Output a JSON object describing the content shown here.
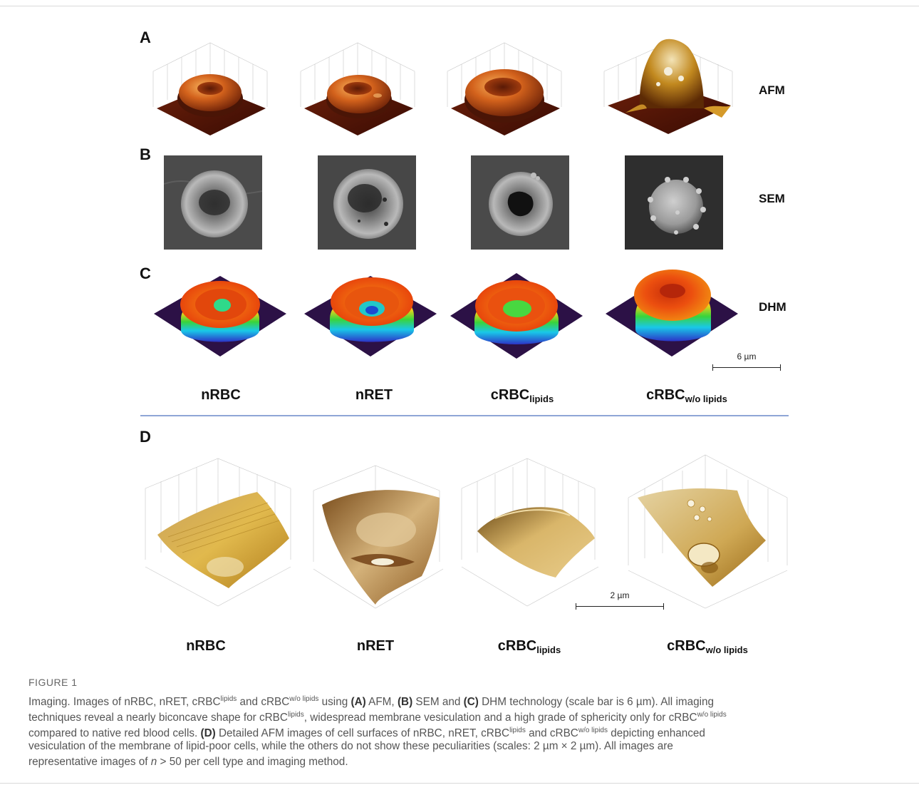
{
  "panels": {
    "a": "A",
    "b": "B",
    "c": "C",
    "d": "D"
  },
  "techniques": {
    "afm": "AFM",
    "sem": "SEM",
    "dhm": "DHM"
  },
  "cell_labels": [
    {
      "main": "nRBC",
      "sub": ""
    },
    {
      "main": "nRET",
      "sub": ""
    },
    {
      "main": "cRBC",
      "sub": "lipids"
    },
    {
      "main": "cRBC",
      "sub": "w/o lipids"
    }
  ],
  "scale_bars": {
    "top": "6 µm",
    "bottom": "2 µm"
  },
  "caption": {
    "title": "FIGURE 1",
    "lines": [
      "Imaging. Images of nRBC, nRET, cRBC<sup>lipids</sup> and cRBC<sup>w/o lipids</sup> using <b>(A)</b> AFM, <b>(B)</b> SEM and <b>(C)</b> DHM technology (scale bar is 6 µm). All imaging",
      "techniques reveal a nearly biconcave shape for cRBC<sup>lipids</sup>, widespread membrane vesiculation and a high grade of sphericity only for cRBC<sup>w/o lipids</sup>",
      "compared to native red blood cells. <b>(D)</b> Detailed AFM images of cell surfaces of nRBC, nRET, cRBC<sup>lipids</sup> and cRBC<sup>w/o lipids</sup> depicting enhanced",
      "vesiculation of the membrane of lipid-poor cells, while the others do not show these peculiarities (scales: 2 µm × 2 µm). All images are",
      "representative images of <i>n</i> &gt; 50 per cell type and imaging method."
    ]
  }
}
